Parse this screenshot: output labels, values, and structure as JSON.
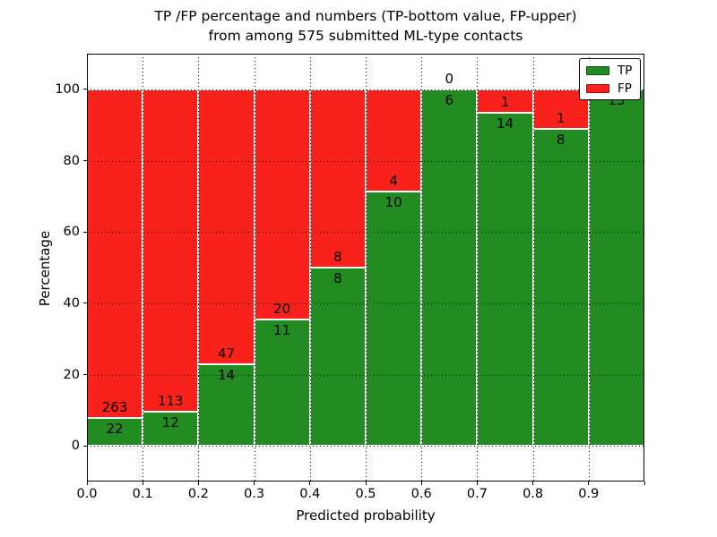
{
  "chart_data": {
    "type": "bar",
    "stacked": true,
    "normalized_to_percent": true,
    "title_line1": "TP /FP percentage and numbers (TP-bottom value, FP-upper)",
    "title_line2": "from among 575 submitted ML-type contacts",
    "xlabel": "Predicted probability",
    "ylabel": "Percentage",
    "total_contacts": 575,
    "bin_width": 0.1,
    "xlim": [
      0.0,
      1.0
    ],
    "ylim": [
      -10,
      110
    ],
    "grid": "dotted",
    "legend_position": "upper right",
    "x_tick_labels": [
      "0.0",
      "0.1",
      "0.2",
      "0.3",
      "0.4",
      "0.5",
      "0.6",
      "0.7",
      "0.8",
      "0.9"
    ],
    "y_ticks": [
      0,
      20,
      40,
      60,
      80,
      100
    ],
    "y_tick_labels": [
      "0",
      "20",
      "40",
      "60",
      "80",
      "100"
    ],
    "bins": [
      {
        "range": "0.0-0.1",
        "tp": 22,
        "fp": 263
      },
      {
        "range": "0.1-0.2",
        "tp": 12,
        "fp": 113
      },
      {
        "range": "0.2-0.3",
        "tp": 14,
        "fp": 47
      },
      {
        "range": "0.3-0.4",
        "tp": 11,
        "fp": 20
      },
      {
        "range": "0.4-0.5",
        "tp": 8,
        "fp": 8
      },
      {
        "range": "0.5-0.6",
        "tp": 10,
        "fp": 4
      },
      {
        "range": "0.6-0.7",
        "tp": 6,
        "fp": 0
      },
      {
        "range": "0.7-0.8",
        "tp": 14,
        "fp": 1
      },
      {
        "range": "0.8-0.9",
        "tp": 8,
        "fp": 1
      },
      {
        "range": "0.9-1.0",
        "tp": 13,
        "fp": 0
      }
    ],
    "series": [
      {
        "name": "TP",
        "color": "#228b22",
        "values": [
          22,
          12,
          14,
          11,
          8,
          10,
          6,
          14,
          8,
          13
        ]
      },
      {
        "name": "FP",
        "color": "#f9211c",
        "values": [
          263,
          113,
          47,
          20,
          8,
          4,
          0,
          1,
          1,
          0
        ]
      }
    ],
    "legend": [
      {
        "label": "TP",
        "color": "#228b22"
      },
      {
        "label": "FP",
        "color": "#f9211c"
      }
    ],
    "colors": {
      "tp": "#228b22",
      "fp": "#f9211c",
      "bar_edge": "#ffffff",
      "grid": "#000000",
      "text": "#000000",
      "background": "#ffffff"
    }
  }
}
